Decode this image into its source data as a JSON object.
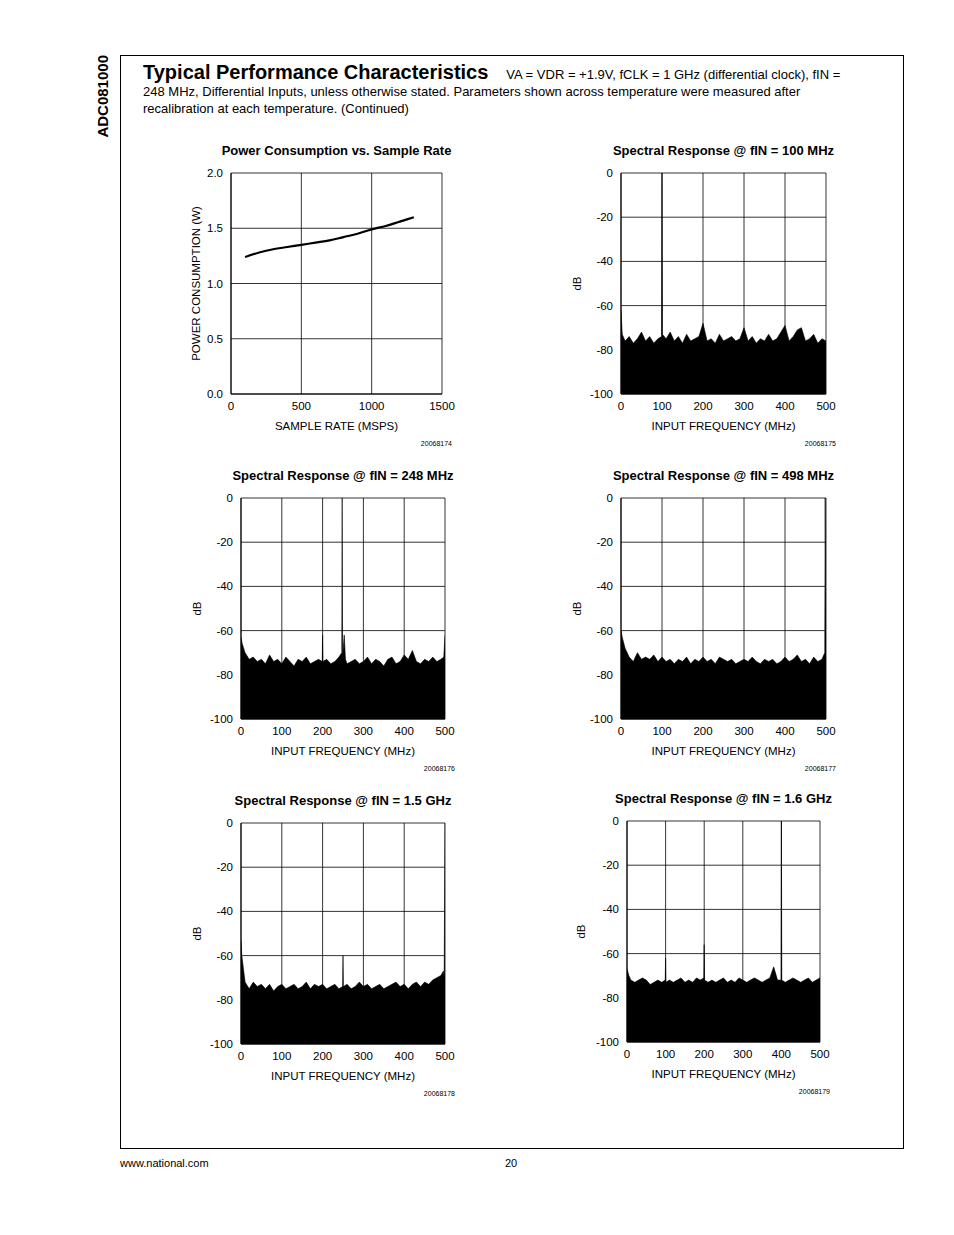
{
  "page": {
    "side_label": "ADC081000",
    "title": "Typical Performance Characteristics",
    "conditions": "VA = VDR = +1.9V, fCLK = 1 GHz (differential clock), fIN = 248 MHz, Differential Inputs, unless otherwise stated. Parameters shown across temperature were measured after recalibration at each temperature.  (Continued)",
    "footer_left": "www.national.com",
    "page_number": "20"
  },
  "chart_data": [
    {
      "type": "line",
      "title": "Power Consumption vs. Sample Rate",
      "x_label": "SAMPLE RATE (MSPS)",
      "y_label": "POWER CONSUMPTION (W)",
      "figure_id": "20068174",
      "color": "#000000",
      "grid": true,
      "xlim": [
        0,
        1500
      ],
      "xticks": [
        0,
        500,
        1000,
        1500
      ],
      "ylim": [
        0,
        2
      ],
      "yticks": [
        {
          "value": 0,
          "label": "0.0"
        },
        {
          "value": 0.5,
          "label": "0.5"
        },
        {
          "value": 1,
          "label": "1.0"
        },
        {
          "value": 1.5,
          "label": "1.5"
        },
        {
          "value": 2,
          "label": "2.0"
        }
      ],
      "x": [
        100,
        200,
        300,
        400,
        500,
        600,
        700,
        800,
        900,
        1000,
        1100,
        1200,
        1300
      ],
      "values": [
        1.24,
        1.28,
        1.31,
        1.33,
        1.35,
        1.37,
        1.39,
        1.42,
        1.45,
        1.49,
        1.52,
        1.56,
        1.6
      ]
    },
    {
      "type": "area",
      "title": "Spectral Response @ fIN = 100 MHz",
      "x_label": "INPUT FREQUENCY (MHz)",
      "y_label": "dB",
      "figure_id": "20068175",
      "color": "#000000",
      "grid": true,
      "xlim": [
        0,
        500
      ],
      "xticks": [
        0,
        100,
        200,
        300,
        400,
        500
      ],
      "ylim": [
        -100,
        0
      ],
      "yticks": [
        -100,
        -80,
        -60,
        -40,
        -20,
        0
      ],
      "x": [
        0,
        3,
        10,
        20,
        30,
        40,
        50,
        60,
        70,
        80,
        90,
        99,
        100,
        101,
        110,
        120,
        130,
        140,
        150,
        160,
        170,
        180,
        190,
        200,
        210,
        220,
        230,
        240,
        250,
        260,
        270,
        280,
        290,
        300,
        310,
        320,
        330,
        340,
        350,
        360,
        370,
        380,
        390,
        400,
        410,
        420,
        430,
        440,
        450,
        460,
        470,
        480,
        490,
        500
      ],
      "values": [
        -62,
        -73,
        -76,
        -74,
        -77,
        -75,
        -72,
        -76,
        -74,
        -77,
        -75,
        -74,
        0,
        -73,
        -75,
        -72,
        -76,
        -74,
        -77,
        -73,
        -76,
        -75,
        -74,
        -68,
        -76,
        -75,
        -77,
        -73,
        -76,
        -75,
        -74,
        -76,
        -75,
        -70,
        -76,
        -74,
        -77,
        -75,
        -76,
        -73,
        -76,
        -75,
        -72,
        -69,
        -76,
        -74,
        -71,
        -70,
        -76,
        -75,
        -73,
        -77,
        -75,
        -76
      ]
    },
    {
      "type": "area",
      "title": "Spectral Response @ fIN = 248 MHz",
      "x_label": "INPUT FREQUENCY (MHz)",
      "y_label": "dB",
      "figure_id": "20068176",
      "color": "#000000",
      "grid": true,
      "xlim": [
        0,
        500
      ],
      "xticks": [
        0,
        100,
        200,
        300,
        400,
        500
      ],
      "ylim": [
        -100,
        0
      ],
      "yticks": [
        -100,
        -80,
        -60,
        -40,
        -20,
        0
      ],
      "x": [
        0,
        3,
        10,
        20,
        30,
        40,
        50,
        60,
        70,
        80,
        90,
        100,
        110,
        120,
        130,
        140,
        150,
        160,
        170,
        180,
        190,
        199,
        200,
        201,
        210,
        220,
        230,
        240,
        247,
        248,
        249,
        253,
        256,
        260,
        270,
        280,
        290,
        300,
        310,
        320,
        330,
        340,
        350,
        360,
        370,
        380,
        390,
        400,
        410,
        420,
        430,
        440,
        450,
        460,
        470,
        480,
        490,
        497,
        500
      ],
      "values": [
        -63,
        -66,
        -70,
        -73,
        -72,
        -74,
        -73,
        -75,
        -71,
        -74,
        -73,
        -75,
        -72,
        -74,
        -76,
        -73,
        -74,
        -72,
        -75,
        -74,
        -73,
        -74,
        -62,
        -74,
        -73,
        -75,
        -74,
        -72,
        -70,
        0,
        -72,
        -62,
        -73,
        -75,
        -74,
        -73,
        -75,
        -74,
        -72,
        -75,
        -73,
        -74,
        -76,
        -73,
        -72,
        -75,
        -74,
        -71,
        -73,
        -69,
        -74,
        -75,
        -73,
        -74,
        -72,
        -74,
        -73,
        -72,
        -62
      ]
    },
    {
      "type": "area",
      "title": "Spectral Response @ fIN = 498 MHz",
      "x_label": "INPUT FREQUENCY (MHz)",
      "y_label": "dB",
      "figure_id": "20068177",
      "color": "#000000",
      "grid": true,
      "xlim": [
        0,
        500
      ],
      "xticks": [
        0,
        100,
        200,
        300,
        400,
        500
      ],
      "ylim": [
        -100,
        0
      ],
      "yticks": [
        -100,
        -80,
        -60,
        -40,
        -20,
        0
      ],
      "x": [
        0,
        3,
        10,
        20,
        30,
        40,
        50,
        60,
        70,
        80,
        90,
        100,
        110,
        120,
        130,
        140,
        150,
        160,
        170,
        180,
        190,
        200,
        210,
        220,
        230,
        240,
        250,
        260,
        270,
        280,
        290,
        300,
        310,
        320,
        330,
        340,
        350,
        360,
        370,
        380,
        390,
        400,
        410,
        420,
        430,
        440,
        450,
        460,
        470,
        480,
        490,
        497,
        498,
        500
      ],
      "values": [
        -60,
        -63,
        -68,
        -72,
        -74,
        -70,
        -73,
        -72,
        -73,
        -71,
        -74,
        -72,
        -74,
        -73,
        -75,
        -73,
        -74,
        -72,
        -75,
        -73,
        -74,
        -72,
        -74,
        -73,
        -75,
        -72,
        -73,
        -74,
        -73,
        -75,
        -74,
        -73,
        -74,
        -72,
        -74,
        -75,
        -73,
        -74,
        -73,
        -75,
        -74,
        -72,
        -74,
        -73,
        -71,
        -74,
        -73,
        -75,
        -72,
        -74,
        -73,
        -70,
        0,
        -65
      ]
    },
    {
      "type": "area",
      "title": "Spectral Response @ fIN = 1.5 GHz",
      "x_label": "INPUT FREQUENCY (MHz)",
      "y_label": "dB",
      "figure_id": "20068178",
      "color": "#000000",
      "grid": true,
      "xlim": [
        0,
        500
      ],
      "xticks": [
        0,
        100,
        200,
        300,
        400,
        500
      ],
      "ylim": [
        -100,
        0
      ],
      "yticks": [
        -100,
        -80,
        -60,
        -40,
        -20,
        0
      ],
      "x": [
        0,
        2,
        10,
        20,
        30,
        40,
        50,
        60,
        70,
        80,
        90,
        100,
        110,
        120,
        130,
        140,
        150,
        160,
        170,
        180,
        190,
        200,
        210,
        220,
        230,
        240,
        249,
        250,
        251,
        260,
        270,
        280,
        290,
        300,
        310,
        320,
        330,
        340,
        350,
        360,
        370,
        380,
        390,
        400,
        410,
        420,
        430,
        440,
        450,
        460,
        470,
        480,
        490,
        496,
        498,
        500
      ],
      "values": [
        -53,
        -60,
        -72,
        -75,
        -72,
        -74,
        -73,
        -75,
        -73,
        -76,
        -74,
        -73,
        -75,
        -74,
        -73,
        -75,
        -74,
        -72,
        -75,
        -73,
        -74,
        -73,
        -75,
        -74,
        -73,
        -75,
        -74,
        -60,
        -74,
        -73,
        -75,
        -74,
        -72,
        -74,
        -73,
        -75,
        -74,
        -73,
        -75,
        -74,
        -73,
        -72,
        -74,
        -73,
        -75,
        -73,
        -72,
        -74,
        -72,
        -73,
        -71,
        -70,
        -69,
        -67,
        -70,
        0
      ]
    },
    {
      "type": "area",
      "title": "Spectral Response @ fIN = 1.6 GHz",
      "x_label": "INPUT FREQUENCY (MHz)",
      "y_label": "dB",
      "figure_id": "20068179",
      "color": "#000000",
      "grid": true,
      "xlim": [
        0,
        500
      ],
      "xticks": [
        0,
        100,
        200,
        300,
        400,
        500
      ],
      "ylim": [
        -100,
        0
      ],
      "yticks": [
        -100,
        -80,
        -60,
        -40,
        -20,
        0
      ],
      "x": [
        0,
        5,
        10,
        20,
        30,
        40,
        50,
        60,
        70,
        80,
        90,
        99,
        100,
        101,
        110,
        120,
        130,
        140,
        150,
        160,
        170,
        180,
        190,
        199,
        200,
        201,
        210,
        220,
        230,
        240,
        250,
        260,
        270,
        280,
        290,
        300,
        310,
        320,
        330,
        340,
        350,
        360,
        370,
        380,
        390,
        399,
        400,
        401,
        410,
        420,
        430,
        440,
        450,
        460,
        470,
        480,
        490,
        500
      ],
      "values": [
        -67,
        -70,
        -72,
        -73,
        -72,
        -71,
        -72,
        -74,
        -73,
        -72,
        -73,
        -72,
        -62,
        -73,
        -72,
        -73,
        -72,
        -71,
        -73,
        -72,
        -73,
        -71,
        -72,
        -71,
        -56,
        -72,
        -73,
        -72,
        -73,
        -72,
        -71,
        -73,
        -72,
        -73,
        -71,
        -72,
        -73,
        -72,
        -71,
        -72,
        -73,
        -72,
        -71,
        -66,
        -72,
        -72,
        0,
        -72,
        -73,
        -72,
        -71,
        -72,
        -73,
        -72,
        -71,
        -73,
        -72,
        -71
      ]
    }
  ]
}
